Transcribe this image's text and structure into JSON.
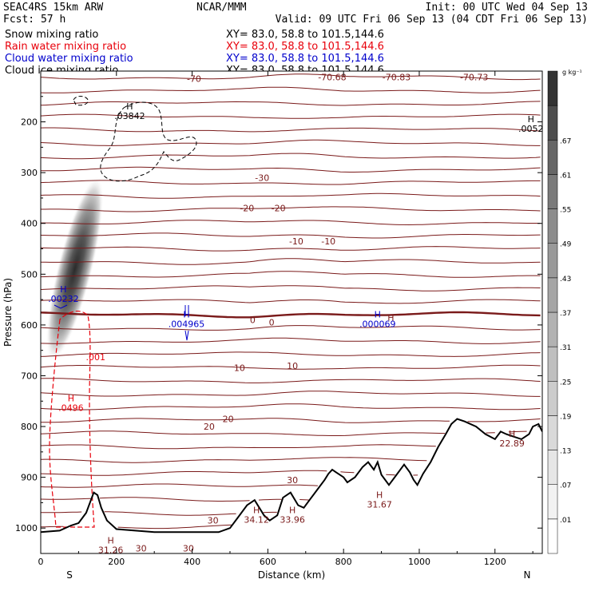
{
  "header": {
    "title_left": "SEAC4RS 15km ARW",
    "title_center": "NCAR/MMM",
    "init": "Init: 00 UTC Wed 04 Sep 13",
    "fcst": "Fcst:   57 h",
    "valid": "Valid: 09 UTC Fri 06 Sep 13 (04 CDT Fri 06 Sep 13)",
    "fields": [
      {
        "name": "Snow mixing ratio",
        "xy": "XY=  83.0, 58.8 to 101.5,144.6",
        "color": "#000000"
      },
      {
        "name": "Rain water mixing ratio",
        "xy": "XY=  83.0, 58.8 to 101.5,144.6",
        "color": "#e8000b"
      },
      {
        "name": "Cloud water mixing ratio",
        "xy": "XY=  83.0, 58.8 to 101.5,144.6",
        "color": "#0000cc"
      },
      {
        "name": "Cloud ice mixing ratio",
        "xy": "XY=  83.0, 58.8 to 101.5,144.6",
        "color": "#000000"
      }
    ]
  },
  "chart_data": {
    "type": "contour_cross_section",
    "xlabel": "Distance (km)",
    "ylabel": "Pressure (hPa)",
    "xlim": [
      0,
      1325
    ],
    "ylim": [
      1050,
      100
    ],
    "x_ticks": [
      0,
      200,
      400,
      600,
      800,
      1000,
      1200
    ],
    "y_ticks": [
      200,
      300,
      400,
      500,
      600,
      700,
      800,
      900,
      1000
    ],
    "x_end_labels": {
      "left": "S",
      "right": "N"
    },
    "colorbar": {
      "unit": "g kg⁻¹",
      "levels": [
        ".01",
        ".07",
        ".13",
        ".19",
        ".25",
        ".31",
        ".37",
        ".43",
        ".49",
        ".55",
        ".61",
        ".67"
      ],
      "colors": [
        "#ffffff",
        "#f2f2f2",
        "#e6e6e6",
        "#d9d9d9",
        "#cccccc",
        "#bfbfbf",
        "#b2b2b2",
        "#a5a5a5",
        "#999999",
        "#8c8c8c",
        "#7a7a7a",
        "#666666",
        "#4d4d4d",
        "#333333"
      ]
    },
    "snow_max": {
      "x": 90,
      "p": 490,
      "value": 0.7
    },
    "temperature_color": "#7a1a1a",
    "isotherm_labels": [
      {
        "text": "-70",
        "x": 405,
        "p": 115
      },
      {
        "text": "-70.68",
        "x": 770,
        "p": 112
      },
      {
        "text": "-70.83",
        "x": 940,
        "p": 112
      },
      {
        "text": "-70.73",
        "x": 1145,
        "p": 112
      },
      {
        "text": "-30",
        "x": 585,
        "p": 310
      },
      {
        "text": "-20",
        "x": 545,
        "p": 370
      },
      {
        "text": "-20",
        "x": 628,
        "p": 370
      },
      {
        "text": "-10",
        "x": 675,
        "p": 435
      },
      {
        "text": "-10",
        "x": 760,
        "p": 435
      },
      {
        "text": "0",
        "x": 560,
        "p": 590
      },
      {
        "text": "0",
        "x": 610,
        "p": 595
      },
      {
        "text": "10",
        "x": 525,
        "p": 684
      },
      {
        "text": "10",
        "x": 665,
        "p": 680
      },
      {
        "text": "20",
        "x": 445,
        "p": 800
      },
      {
        "text": "20",
        "x": 495,
        "p": 785
      },
      {
        "text": "30",
        "x": 665,
        "p": 905
      },
      {
        "text": "30",
        "x": 455,
        "p": 985
      },
      {
        "text": "30",
        "x": 265,
        "p": 1040
      },
      {
        "text": "30",
        "x": 390,
        "p": 1040
      }
    ],
    "max_labels": [
      {
        "h": "H",
        "value": ".03842",
        "x": 235,
        "p": 185,
        "color": "#000000"
      },
      {
        "h": "H",
        "value": ".0052",
        "x": 1295,
        "p": 210,
        "color": "#000000"
      },
      {
        "h": "H",
        "value": ".00232",
        "x": 60,
        "p": 545,
        "color": "#0000cc"
      },
      {
        "h": "H",
        "value": ".004965",
        "x": 385,
        "p": 595,
        "color": "#0000cc"
      },
      {
        "h": "H",
        "value": ".000069",
        "x": 890,
        "p": 595,
        "color": "#0000cc"
      },
      {
        "h": "H",
        "value": "H",
        "x": 925,
        "p": 582,
        "color": "#7a1a1a"
      },
      {
        "h": "",
        "value": ".001",
        "x": 145,
        "p": 660,
        "color": "#e8000b"
      },
      {
        "h": "H",
        "value": ".0496",
        "x": 80,
        "p": 760,
        "color": "#e8000b"
      },
      {
        "h": "H",
        "value": "22.89",
        "x": 1245,
        "p": 830,
        "color": "#7a1a1a"
      },
      {
        "h": "H",
        "value": "31.67",
        "x": 895,
        "p": 950,
        "color": "#7a1a1a"
      },
      {
        "h": "H",
        "value": "34.12",
        "x": 570,
        "p": 980,
        "color": "#7a1a1a"
      },
      {
        "h": "H",
        "value": "33.96",
        "x": 665,
        "p": 980,
        "color": "#7a1a1a"
      },
      {
        "h": "H",
        "value": "31.26",
        "x": 185,
        "p": 1040,
        "color": "#7a1a1a"
      }
    ],
    "terrain_surface_hpa": [
      [
        0,
        1008
      ],
      [
        50,
        1005
      ],
      [
        80,
        995
      ],
      [
        100,
        990
      ],
      [
        120,
        970
      ],
      [
        140,
        930
      ],
      [
        150,
        935
      ],
      [
        160,
        960
      ],
      [
        175,
        985
      ],
      [
        200,
        1002
      ],
      [
        300,
        1008
      ],
      [
        420,
        1008
      ],
      [
        470,
        1008
      ],
      [
        500,
        1000
      ],
      [
        520,
        980
      ],
      [
        545,
        955
      ],
      [
        565,
        945
      ],
      [
        590,
        975
      ],
      [
        605,
        985
      ],
      [
        625,
        975
      ],
      [
        640,
        940
      ],
      [
        660,
        930
      ],
      [
        680,
        955
      ],
      [
        695,
        960
      ],
      [
        710,
        945
      ],
      [
        730,
        925
      ],
      [
        750,
        905
      ],
      [
        760,
        893
      ],
      [
        770,
        885
      ],
      [
        780,
        890
      ],
      [
        800,
        900
      ],
      [
        810,
        910
      ],
      [
        830,
        900
      ],
      [
        850,
        880
      ],
      [
        865,
        870
      ],
      [
        880,
        885
      ],
      [
        890,
        870
      ],
      [
        900,
        895
      ],
      [
        920,
        915
      ],
      [
        940,
        895
      ],
      [
        960,
        875
      ],
      [
        975,
        890
      ],
      [
        985,
        905
      ],
      [
        995,
        915
      ],
      [
        1010,
        893
      ],
      [
        1030,
        870
      ],
      [
        1050,
        840
      ],
      [
        1070,
        815
      ],
      [
        1085,
        795
      ],
      [
        1100,
        785
      ],
      [
        1120,
        790
      ],
      [
        1150,
        800
      ],
      [
        1175,
        815
      ],
      [
        1200,
        825
      ],
      [
        1215,
        810
      ],
      [
        1230,
        815
      ],
      [
        1250,
        820
      ],
      [
        1270,
        825
      ],
      [
        1290,
        815
      ],
      [
        1300,
        800
      ],
      [
        1315,
        795
      ],
      [
        1325,
        810
      ]
    ]
  }
}
